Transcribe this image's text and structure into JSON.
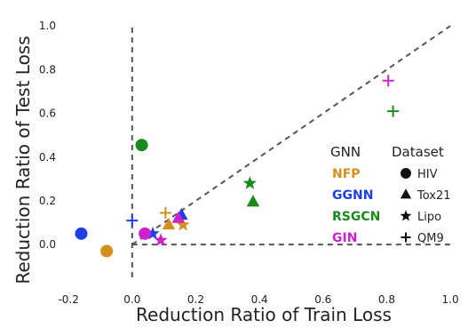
{
  "chart_data": {
    "type": "scatter",
    "xlabel": "Reduction Ratio of Train Loss",
    "ylabel": "Reduction Ratio of Test Loss",
    "xlim": [
      -0.22,
      1.05
    ],
    "ylim": [
      -0.15,
      1.07
    ],
    "xticks": [
      -0.2,
      0.0,
      0.2,
      0.4,
      0.6,
      0.8,
      1.0
    ],
    "xtick_labels": [
      "-0.2",
      "0.0",
      "0.2",
      "0.4",
      "0.6",
      "0.8",
      "1.0"
    ],
    "yticks": [
      0.0,
      0.2,
      0.4,
      0.6,
      0.8,
      1.0
    ],
    "ytick_labels": [
      "0.0",
      "0.2",
      "0.4",
      "0.6",
      "0.8",
      "1.0"
    ],
    "grid": false,
    "reference_lines": [
      "x = 0",
      "y = 0",
      "y = x"
    ],
    "legend": {
      "placement": "center-right",
      "model_title": "GNN",
      "dataset_title": "Dataset",
      "models": [
        {
          "name": "NFP",
          "color": "#d4901e"
        },
        {
          "name": "GGNN",
          "color": "#1f3fe6"
        },
        {
          "name": "RSGCN",
          "color": "#1a8a1a"
        },
        {
          "name": "GIN",
          "color": "#cc22cc"
        }
      ],
      "datasets": [
        {
          "name": "HIV",
          "marker": "circle"
        },
        {
          "name": "Tox21",
          "marker": "triangle"
        },
        {
          "name": "Lipo",
          "marker": "star"
        },
        {
          "name": "QM9",
          "marker": "plus"
        }
      ]
    },
    "series": [
      {
        "model": "NFP",
        "dataset": "HIV",
        "x": -0.08,
        "y": -0.03
      },
      {
        "model": "NFP",
        "dataset": "Tox21",
        "x": 0.115,
        "y": 0.09
      },
      {
        "model": "NFP",
        "dataset": "Lipo",
        "x": 0.16,
        "y": 0.09
      },
      {
        "model": "NFP",
        "dataset": "QM9",
        "x": 0.105,
        "y": 0.145
      },
      {
        "model": "GGNN",
        "dataset": "HIV",
        "x": -0.16,
        "y": 0.05
      },
      {
        "model": "GGNN",
        "dataset": "Tox21",
        "x": 0.155,
        "y": 0.135
      },
      {
        "model": "GGNN",
        "dataset": "Lipo",
        "x": 0.065,
        "y": 0.05
      },
      {
        "model": "GGNN",
        "dataset": "QM9",
        "x": 0.0,
        "y": 0.11
      },
      {
        "model": "RSGCN",
        "dataset": "HIV",
        "x": 0.03,
        "y": 0.455
      },
      {
        "model": "RSGCN",
        "dataset": "Tox21",
        "x": 0.38,
        "y": 0.195
      },
      {
        "model": "RSGCN",
        "dataset": "Lipo",
        "x": 0.37,
        "y": 0.28
      },
      {
        "model": "RSGCN",
        "dataset": "QM9",
        "x": 0.82,
        "y": 0.61
      },
      {
        "model": "GIN",
        "dataset": "HIV",
        "x": 0.04,
        "y": 0.05
      },
      {
        "model": "GIN",
        "dataset": "Tox21",
        "x": 0.145,
        "y": 0.12
      },
      {
        "model": "GIN",
        "dataset": "Lipo",
        "x": 0.09,
        "y": 0.02
      },
      {
        "model": "GIN",
        "dataset": "QM9",
        "x": 0.805,
        "y": 0.75
      }
    ]
  }
}
